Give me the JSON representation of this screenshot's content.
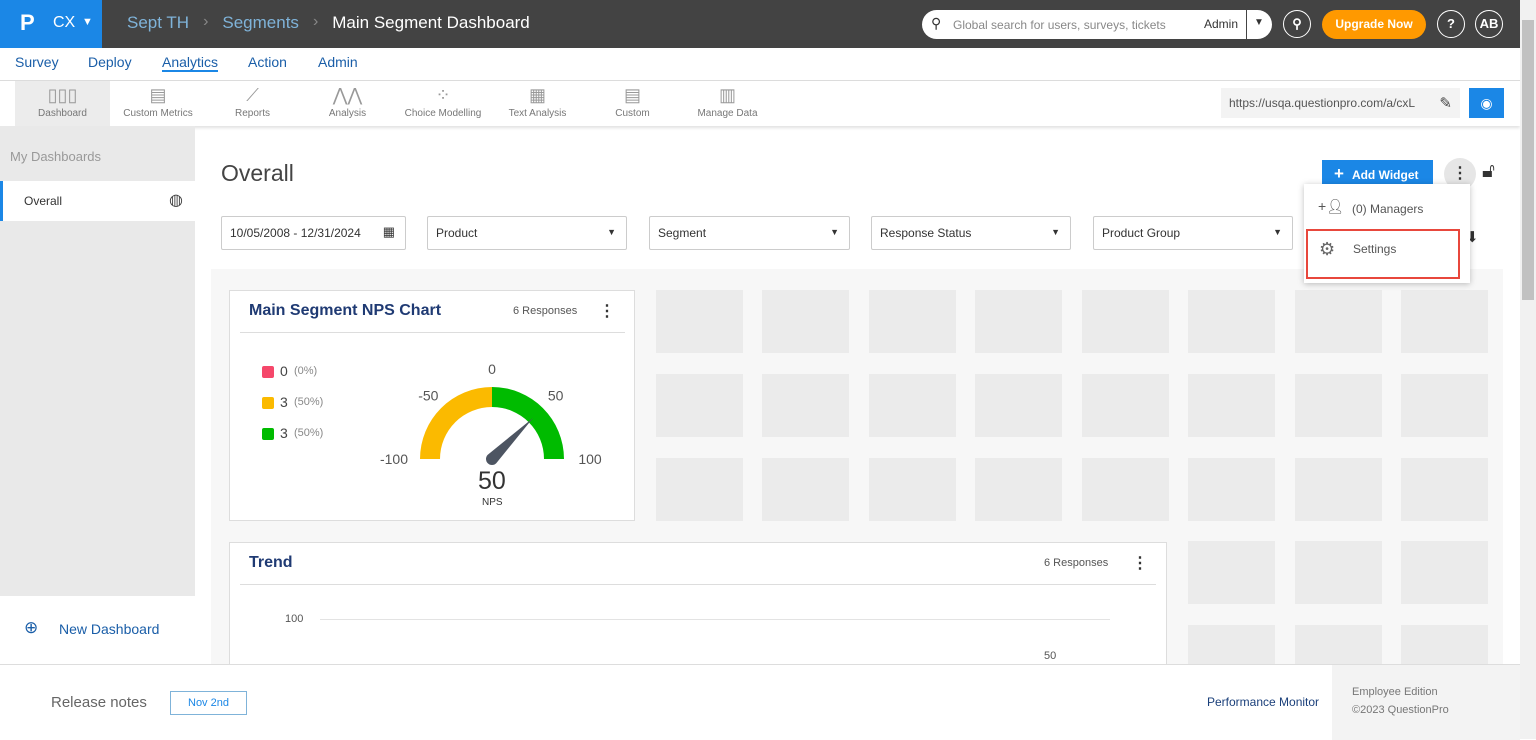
{
  "header": {
    "logo": "P",
    "product": "CX",
    "breadcrumb": [
      "Sept TH",
      "Segments",
      "Main Segment Dashboard"
    ],
    "search_placeholder": "Global search for users, surveys, tickets",
    "search_scope": "Admin",
    "upgrade": "Upgrade Now",
    "help": "?",
    "avatar": "AB"
  },
  "nav": [
    "Survey",
    "Deploy",
    "Analytics",
    "Action",
    "Admin"
  ],
  "nav_active": "Analytics",
  "toolbar": [
    {
      "label": "Dashboard",
      "icon": "bar-chart-icon"
    },
    {
      "label": "Custom Metrics",
      "icon": "document-icon"
    },
    {
      "label": "Reports",
      "icon": "line-chart-icon"
    },
    {
      "label": "Analysis",
      "icon": "analysis-icon"
    },
    {
      "label": "Choice Modelling",
      "icon": "scatter-icon"
    },
    {
      "label": "Text Analysis",
      "icon": "text-analysis-icon"
    },
    {
      "label": "Custom",
      "icon": "document-icon"
    },
    {
      "label": "Manage Data",
      "icon": "excel-icon"
    }
  ],
  "url": "https://usqa.questionpro.com/a/cxL",
  "sidebar": {
    "title": "My Dashboards",
    "items": [
      {
        "label": "Overall"
      }
    ],
    "new_dashboard": "New Dashboard"
  },
  "main": {
    "title": "Overall",
    "add_widget": "Add Widget",
    "filters": {
      "date": "10/05/2008 - 12/31/2024",
      "product": "Product",
      "segment": "Segment",
      "status": "Response Status",
      "group": "Product Group"
    }
  },
  "menu": {
    "managers": "(0) Managers",
    "settings": "Settings"
  },
  "nps_widget": {
    "title": "Main Segment NPS Chart",
    "responses": "6 Responses",
    "legend": [
      {
        "count": "0",
        "pct": "(0%)",
        "color": "#f5476a"
      },
      {
        "count": "3",
        "pct": "(50%)",
        "color": "#fbba00"
      },
      {
        "count": "3",
        "pct": "(50%)",
        "color": "#00bb00"
      }
    ],
    "gauge_ticks": [
      "-100",
      "-50",
      "0",
      "50",
      "100"
    ],
    "value": "50",
    "value_label": "NPS",
    "needle_value": 50
  },
  "trend_widget": {
    "title": "Trend",
    "responses": "6 Responses",
    "y_tick": "100",
    "point_label": "50"
  },
  "footer": {
    "release_notes": "Release notes",
    "release_date": "Nov 2nd",
    "perf": "Performance Monitor",
    "edition": "Employee Edition",
    "copyright": "©2023 QuestionPro"
  }
}
